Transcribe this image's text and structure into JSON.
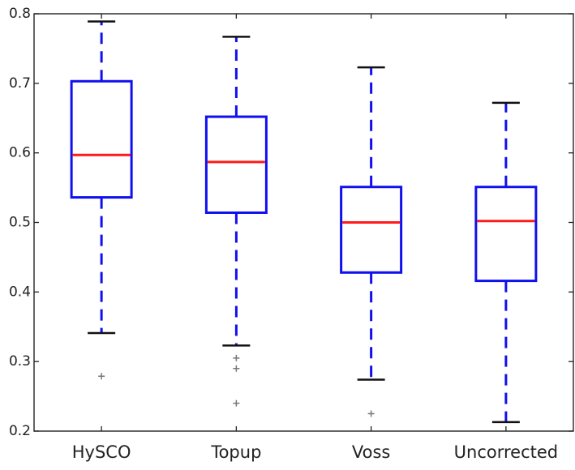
{
  "chart_data": {
    "type": "box",
    "title": "",
    "xlabel": "",
    "ylabel": "",
    "ylim": [
      0.2,
      0.8
    ],
    "yticks": [
      0.2,
      0.3,
      0.4,
      0.5,
      0.6,
      0.7,
      0.8
    ],
    "ytick_labels": [
      "0.2",
      "0.3",
      "0.4",
      "0.5",
      "0.6",
      "0.7",
      "0.8"
    ],
    "grid": false,
    "legend": "none",
    "categories": [
      "HySCO",
      "Topup",
      "Voss",
      "Uncorrected"
    ],
    "boxes": [
      {
        "whisker_low": 0.341,
        "q1": 0.536,
        "median": 0.597,
        "q3": 0.703,
        "whisker_high": 0.789,
        "outliers": [
          0.279
        ]
      },
      {
        "whisker_low": 0.323,
        "q1": 0.514,
        "median": 0.587,
        "q3": 0.652,
        "whisker_high": 0.767,
        "outliers": [
          0.305,
          0.29,
          0.24
        ]
      },
      {
        "whisker_low": 0.274,
        "q1": 0.428,
        "median": 0.5,
        "q3": 0.551,
        "whisker_high": 0.723,
        "outliers": [
          0.225
        ]
      },
      {
        "whisker_low": 0.213,
        "q1": 0.416,
        "median": 0.502,
        "q3": 0.551,
        "whisker_high": 0.672,
        "outliers": []
      }
    ],
    "colors": {
      "box": "#1010ee",
      "median": "#ff1a1a",
      "whisker": "#1010ee",
      "cap": "#111111",
      "outlier": "#777777",
      "axis": "#222222"
    }
  }
}
